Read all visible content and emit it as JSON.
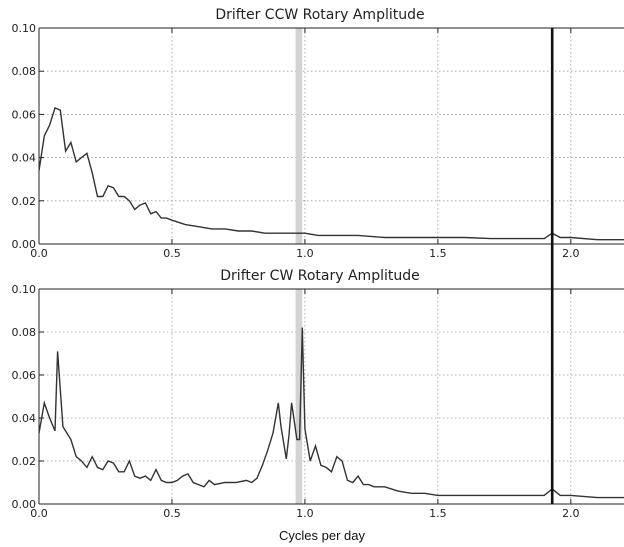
{
  "colors": {
    "series": "#333333",
    "grid": "#9a9a9a",
    "axis": "#222222",
    "marker_line": "#111111",
    "band": "#d3d3d3"
  },
  "chart_data": [
    {
      "type": "line",
      "title": "Drifter CCW Rotary Amplitude",
      "xlabel": "",
      "ylabel": "",
      "xlim": [
        0.0,
        2.2
      ],
      "ylim": [
        0.0,
        0.1
      ],
      "xticks": [
        "0.0",
        "0.5",
        "1.0",
        "1.5",
        "2.0"
      ],
      "yticks": [
        "0.00",
        "0.02",
        "0.04",
        "0.06",
        "0.08",
        "0.10"
      ],
      "grid": true,
      "shaded_band": [
        0.965,
        0.99
      ],
      "vertical_line_x": 1.93,
      "series": [
        {
          "x": [
            0.0,
            0.02,
            0.04,
            0.06,
            0.08,
            0.1,
            0.12,
            0.14,
            0.16,
            0.18,
            0.2,
            0.22,
            0.24,
            0.26,
            0.28,
            0.3,
            0.32,
            0.34,
            0.36,
            0.38,
            0.4,
            0.42,
            0.44,
            0.46,
            0.48,
            0.5,
            0.55,
            0.6,
            0.65,
            0.7,
            0.75,
            0.8,
            0.85,
            0.9,
            0.95,
            1.0,
            1.05,
            1.1,
            1.2,
            1.3,
            1.4,
            1.5,
            1.6,
            1.7,
            1.8,
            1.9,
            1.93,
            1.96,
            2.0,
            2.1,
            2.2
          ],
          "values": [
            0.034,
            0.05,
            0.055,
            0.063,
            0.062,
            0.043,
            0.047,
            0.038,
            0.04,
            0.042,
            0.033,
            0.022,
            0.022,
            0.027,
            0.026,
            0.022,
            0.022,
            0.02,
            0.016,
            0.018,
            0.019,
            0.014,
            0.015,
            0.012,
            0.012,
            0.011,
            0.009,
            0.008,
            0.007,
            0.007,
            0.006,
            0.006,
            0.005,
            0.005,
            0.005,
            0.005,
            0.004,
            0.004,
            0.004,
            0.003,
            0.003,
            0.003,
            0.003,
            0.0025,
            0.0025,
            0.0025,
            0.005,
            0.003,
            0.003,
            0.002,
            0.002
          ]
        }
      ]
    },
    {
      "type": "line",
      "title": "Drifter CW Rotary Amplitude",
      "xlabel": "Cycles per day",
      "ylabel": "",
      "xlim": [
        0.0,
        2.2
      ],
      "ylim": [
        0.0,
        0.1
      ],
      "xticks": [
        "0.0",
        "0.5",
        "1.0",
        "1.5",
        "2.0"
      ],
      "yticks": [
        "0.00",
        "0.02",
        "0.04",
        "0.06",
        "0.08",
        "0.10"
      ],
      "grid": true,
      "shaded_band": [
        0.965,
        0.99
      ],
      "vertical_line_x": 1.93,
      "series": [
        {
          "x": [
            0.0,
            0.02,
            0.04,
            0.06,
            0.07,
            0.09,
            0.12,
            0.14,
            0.16,
            0.18,
            0.2,
            0.22,
            0.24,
            0.26,
            0.28,
            0.3,
            0.32,
            0.34,
            0.36,
            0.38,
            0.4,
            0.42,
            0.44,
            0.46,
            0.48,
            0.5,
            0.52,
            0.54,
            0.56,
            0.58,
            0.6,
            0.62,
            0.64,
            0.66,
            0.7,
            0.74,
            0.78,
            0.8,
            0.82,
            0.84,
            0.86,
            0.88,
            0.9,
            0.91,
            0.93,
            0.94,
            0.95,
            0.97,
            0.98,
            0.99,
            1.0,
            1.02,
            1.04,
            1.06,
            1.08,
            1.1,
            1.12,
            1.14,
            1.16,
            1.18,
            1.2,
            1.22,
            1.24,
            1.26,
            1.28,
            1.3,
            1.35,
            1.4,
            1.45,
            1.5,
            1.6,
            1.7,
            1.8,
            1.9,
            1.93,
            1.96,
            2.0,
            2.1,
            2.2
          ],
          "values": [
            0.033,
            0.047,
            0.04,
            0.034,
            0.071,
            0.036,
            0.03,
            0.022,
            0.02,
            0.017,
            0.022,
            0.017,
            0.016,
            0.02,
            0.019,
            0.015,
            0.015,
            0.02,
            0.013,
            0.012,
            0.013,
            0.011,
            0.016,
            0.011,
            0.01,
            0.01,
            0.011,
            0.013,
            0.014,
            0.01,
            0.009,
            0.008,
            0.011,
            0.009,
            0.01,
            0.01,
            0.011,
            0.01,
            0.012,
            0.018,
            0.025,
            0.033,
            0.047,
            0.036,
            0.021,
            0.032,
            0.047,
            0.03,
            0.03,
            0.082,
            0.035,
            0.02,
            0.027,
            0.018,
            0.017,
            0.015,
            0.022,
            0.02,
            0.011,
            0.01,
            0.013,
            0.009,
            0.009,
            0.008,
            0.008,
            0.008,
            0.006,
            0.005,
            0.005,
            0.004,
            0.004,
            0.004,
            0.004,
            0.004,
            0.007,
            0.004,
            0.004,
            0.003,
            0.003
          ]
        }
      ]
    }
  ]
}
